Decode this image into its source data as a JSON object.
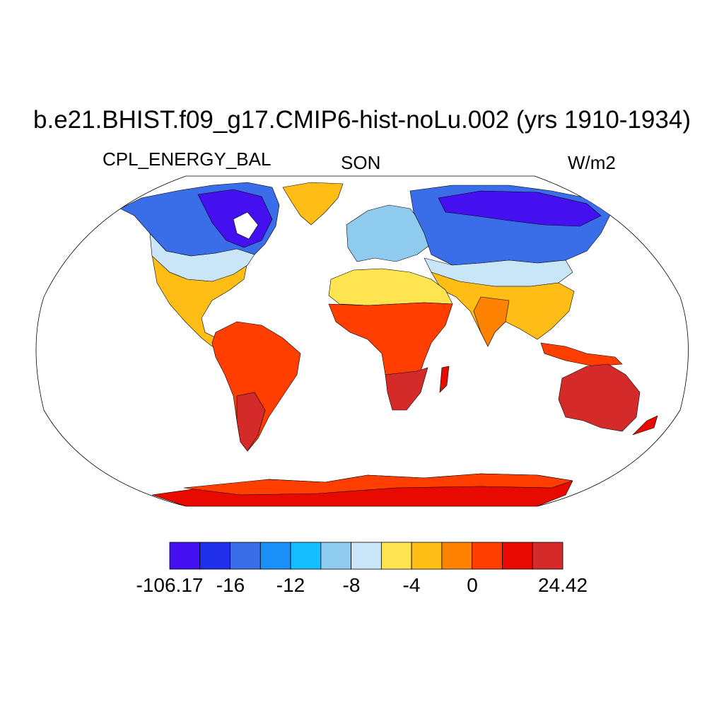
{
  "title": "b.e21.BHIST.f09_g17.CMIP6-hist-noLu.002 (yrs 1910-1934)",
  "subtitle_left": "CPL_ENERGY_BAL",
  "subtitle_center": "SON",
  "subtitle_right": "W/m2",
  "colorbar": {
    "colors": [
      "#4410f0",
      "#2030e8",
      "#3a6ee8",
      "#1a8ff5",
      "#14beff",
      "#8ecbef",
      "#c8e6f8",
      "#ffe452",
      "#ffbd16",
      "#ff8200",
      "#ff3e00",
      "#e80a00",
      "#d52a2a"
    ],
    "tick_labels": [
      "-106.17",
      "-16",
      "-12",
      "-8",
      "-4",
      "0",
      "24.42"
    ]
  },
  "map": {
    "projection": "Robinson",
    "variable": "CPL_ENERGY_BAL",
    "regions": [
      {
        "name": "North America (north)",
        "category": "-16",
        "color": "#2a50e8"
      },
      {
        "name": "Greenland",
        "category": "0",
        "color": "#ffbd16"
      },
      {
        "name": "Europe",
        "category": "-8",
        "color": "#8ecbef"
      },
      {
        "name": "Siberia",
        "category": "-16",
        "color": "#3a6ee8"
      },
      {
        "name": "Africa",
        "category": "> 0",
        "color": "#ff3e00"
      },
      {
        "name": "South America",
        "category": "> 0",
        "color": "#ff3e00"
      },
      {
        "name": "Australia",
        "category": "24.42",
        "color": "#d52a2a"
      },
      {
        "name": "Antarctica",
        "category": "> 0",
        "color": "#e80a00"
      }
    ]
  }
}
